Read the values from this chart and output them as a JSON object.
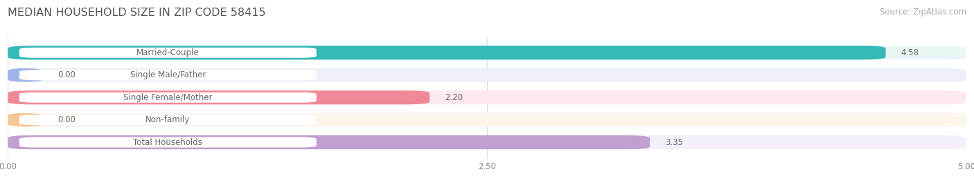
{
  "title": "MEDIAN HOUSEHOLD SIZE IN ZIP CODE 58415",
  "source": "Source: ZipAtlas.com",
  "categories": [
    "Married-Couple",
    "Single Male/Father",
    "Single Female/Mother",
    "Non-family",
    "Total Households"
  ],
  "values": [
    4.58,
    0.0,
    2.2,
    0.0,
    3.35
  ],
  "bar_colors": [
    "#35b8b8",
    "#a0b4e8",
    "#f08898",
    "#f5c898",
    "#c0a0d0"
  ],
  "bar_bg_colors": [
    "#e8f6f6",
    "#edf0f8",
    "#fce8f0",
    "#fdf5ec",
    "#f4eff8"
  ],
  "label_bg_color": "#ffffff",
  "xlim": [
    0,
    5.0
  ],
  "xticks": [
    0.0,
    2.5,
    5.0
  ],
  "xtick_labels": [
    "0.00",
    "2.50",
    "5.00"
  ],
  "title_fontsize": 11.5,
  "source_fontsize": 8.5,
  "label_fontsize": 8.5,
  "value_fontsize": 8.5,
  "bar_height": 0.62,
  "background_color": "#ffffff",
  "grid_color": "#dddddd",
  "text_color": "#666666"
}
